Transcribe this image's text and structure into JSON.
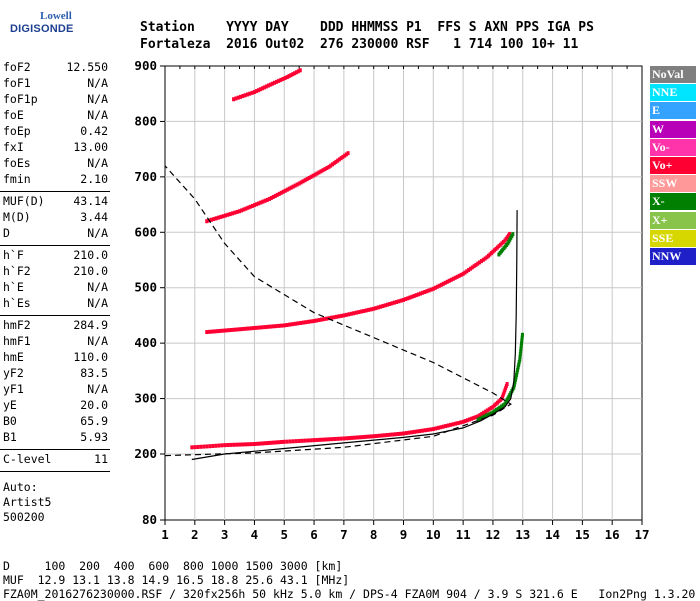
{
  "logo": {
    "line1": "Lowell",
    "line2": "DIGISONDE"
  },
  "header": {
    "labels": "Station    YYYY DAY    DDD HHMMSS P1  FFS S AXN PPS IGA PS",
    "values": "Fortaleza  2016 Out02  276 230000 RSF   1 714 100 10+ 11"
  },
  "params": [
    {
      "key": "foF2",
      "value": "12.550"
    },
    {
      "key": "foF1",
      "value": "N/A"
    },
    {
      "key": "foF1p",
      "value": "N/A"
    },
    {
      "key": "foE",
      "value": "N/A"
    },
    {
      "key": "foEp",
      "value": "0.42"
    },
    {
      "key": "fxI",
      "value": "13.00"
    },
    {
      "key": "foEs",
      "value": "N/A"
    },
    {
      "key": "fmin",
      "value": "2.10"
    },
    {
      "sep": true
    },
    {
      "key": "MUF(D)",
      "value": "43.14"
    },
    {
      "key": "M(D)",
      "value": "3.44"
    },
    {
      "key": "D",
      "value": "N/A"
    },
    {
      "sep": true
    },
    {
      "key": "h`F",
      "value": "210.0"
    },
    {
      "key": "h`F2",
      "value": "210.0"
    },
    {
      "key": "h`E",
      "value": "N/A"
    },
    {
      "key": "h`Es",
      "value": "N/A"
    },
    {
      "sep": true
    },
    {
      "key": "hmF2",
      "value": "284.9"
    },
    {
      "key": "hmF1",
      "value": "N/A"
    },
    {
      "key": "hmE",
      "value": "110.0"
    },
    {
      "key": "yF2",
      "value": "83.5"
    },
    {
      "key": "yF1",
      "value": "N/A"
    },
    {
      "key": "yE",
      "value": "20.0"
    },
    {
      "key": "B0",
      "value": "65.9"
    },
    {
      "key": "B1",
      "value": "5.93"
    },
    {
      "sep": true
    },
    {
      "key": "C-level",
      "value": "11"
    },
    {
      "sep": true
    }
  ],
  "autoscaling": {
    "l1": "Auto:",
    "l2": "Artist5",
    "l3": "500200"
  },
  "legend": [
    {
      "label": "NoVal",
      "color": "#7f7f7f"
    },
    {
      "label": "NNE",
      "color": "#00e5ff"
    },
    {
      "label": "E",
      "color": "#33a3ff"
    },
    {
      "label": "W",
      "color": "#b800b8"
    },
    {
      "label": "Vo-",
      "color": "#ff33aa"
    },
    {
      "label": "Vo+",
      "color": "#ff0033"
    },
    {
      "label": "SSW",
      "color": "#ff9999"
    },
    {
      "label": "X-",
      "color": "#007f00"
    },
    {
      "label": "X+",
      "color": "#88c44a"
    },
    {
      "label": "SSE",
      "color": "#d7d700"
    },
    {
      "label": "NNW",
      "color": "#2020c8"
    }
  ],
  "footer": {
    "line1": "D     100  200  400  600  800 1000 1500 3000 [km]",
    "line2": "MUF  12.9 13.1 13.8 14.9 16.5 18.8 25.6 43.1 [MHz]",
    "line3": "FZA0M_2016276230000.RSF / 320fx256h 50 kHz 5.0 km / DPS-4 FZA0M 904 / 3.9 S 321.6 E   Ion2Png 1.3.20"
  },
  "chart_data": {
    "type": "scatter",
    "x_ticks": [
      "1",
      "2",
      "3",
      "4",
      "5",
      "6",
      "7",
      "8",
      "9",
      "10",
      "11",
      "12",
      "13",
      "14",
      "15",
      "16",
      "17"
    ],
    "y_ticks": [
      "80",
      "200",
      "300",
      "400",
      "500",
      "600",
      "700",
      "800",
      "900"
    ],
    "xlim": [
      1,
      17
    ],
    "ylim": [
      80,
      900
    ],
    "grid": true,
    "series": [
      {
        "color": "#ff0033",
        "points": [
          [
            1.9,
            212
          ],
          [
            2.5,
            214
          ],
          [
            3,
            216
          ],
          [
            4,
            218
          ],
          [
            5,
            222
          ],
          [
            6,
            225
          ],
          [
            7,
            228
          ],
          [
            8,
            232
          ],
          [
            9,
            237
          ],
          [
            10,
            245
          ],
          [
            11,
            258
          ],
          [
            11.5,
            268
          ],
          [
            12,
            285
          ],
          [
            12.3,
            300
          ],
          [
            12.5,
            330
          ]
        ]
      },
      {
        "color": "#ff0033",
        "points": [
          [
            2.4,
            420
          ],
          [
            3.5,
            425
          ],
          [
            5,
            432
          ],
          [
            6,
            440
          ],
          [
            7,
            450
          ],
          [
            8,
            462
          ],
          [
            9,
            478
          ],
          [
            10,
            498
          ],
          [
            11,
            525
          ],
          [
            11.8,
            555
          ],
          [
            12.4,
            585
          ],
          [
            12.6,
            600
          ]
        ]
      },
      {
        "color": "#ff0033",
        "points": [
          [
            2.4,
            620
          ],
          [
            3.5,
            638
          ],
          [
            4.5,
            660
          ],
          [
            5.5,
            688
          ],
          [
            6.5,
            718
          ],
          [
            7.2,
            745
          ]
        ]
      },
      {
        "color": "#ff0033",
        "points": [
          [
            3.3,
            840
          ],
          [
            4,
            853
          ],
          [
            4.6,
            868
          ],
          [
            5.1,
            880
          ],
          [
            5.6,
            894
          ]
        ]
      },
      {
        "color": "#007f00",
        "points": [
          [
            11.5,
            262
          ],
          [
            12,
            275
          ],
          [
            12.4,
            290
          ],
          [
            12.7,
            320
          ],
          [
            12.9,
            370
          ],
          [
            13,
            420
          ]
        ]
      },
      {
        "color": "#007f00",
        "points": [
          [
            12.2,
            560
          ],
          [
            12.5,
            580
          ],
          [
            12.7,
            600
          ]
        ]
      }
    ],
    "profile_solid": [
      [
        1.9,
        190
      ],
      [
        3,
        200
      ],
      [
        5,
        210
      ],
      [
        7,
        220
      ],
      [
        9,
        230
      ],
      [
        10,
        236
      ],
      [
        11,
        247
      ],
      [
        11.6,
        260
      ],
      [
        12.1,
        275
      ],
      [
        12.4,
        285
      ],
      [
        12.6,
        300
      ],
      [
        12.7,
        330
      ],
      [
        12.75,
        380
      ],
      [
        12.78,
        450
      ],
      [
        12.8,
        550
      ],
      [
        12.81,
        640
      ]
    ],
    "profile_dashed": [
      [
        1,
        197
      ],
      [
        4,
        202
      ],
      [
        7,
        212
      ],
      [
        10,
        232
      ],
      [
        12,
        270
      ],
      [
        12.6,
        290
      ],
      [
        12,
        310
      ],
      [
        10,
        365
      ],
      [
        8,
        410
      ],
      [
        6,
        455
      ],
      [
        4,
        520
      ],
      [
        3,
        580
      ],
      [
        2,
        660
      ],
      [
        1,
        720
      ]
    ]
  }
}
